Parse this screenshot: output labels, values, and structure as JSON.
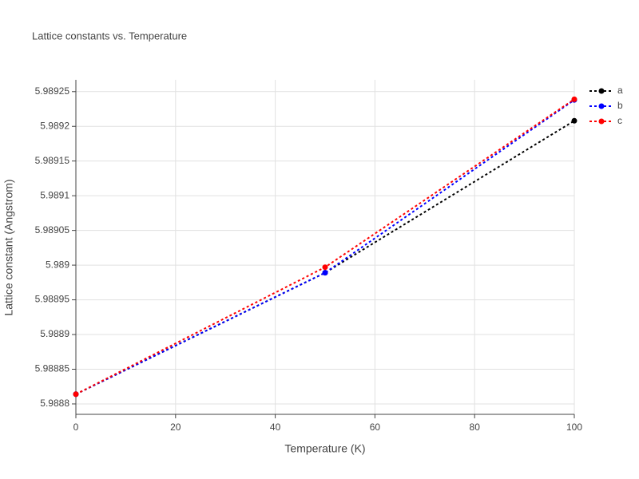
{
  "chart_data": {
    "type": "line",
    "title": "Lattice constants vs. Temperature",
    "x_label": "Temperature (K)",
    "y_label": "Lattice constant (Angstrom)",
    "x": [
      0,
      50,
      100
    ],
    "series": [
      {
        "name": "a",
        "color": "#000000",
        "values": [
          5.988814,
          5.988989,
          5.989208
        ]
      },
      {
        "name": "b",
        "color": "#0000ff",
        "values": [
          5.988814,
          5.988989,
          5.989238
        ]
      },
      {
        "name": "c",
        "color": "#ff0000",
        "values": [
          5.988814,
          5.988997,
          5.989239
        ]
      }
    ],
    "xlim": [
      0,
      100
    ],
    "xticks": [
      0,
      20,
      40,
      60,
      80,
      100
    ],
    "ylim": [
      5.988785,
      5.989267
    ],
    "yticks": [
      5.9888,
      5.98885,
      5.9889,
      5.98895,
      5.989,
      5.98905,
      5.9891,
      5.98915,
      5.9892,
      5.98925
    ],
    "grid": true,
    "legend": "top-right"
  }
}
